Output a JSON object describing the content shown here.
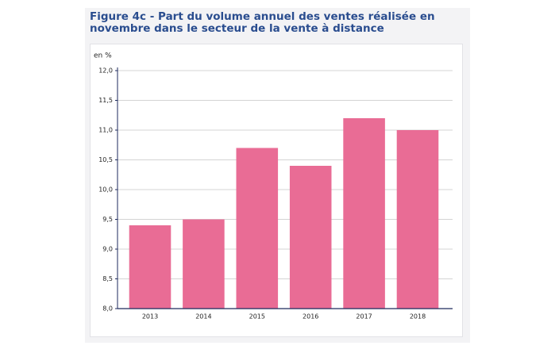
{
  "chart_data": {
    "type": "bar",
    "title": "Figure 4c - Part du volume annuel des ventes réalisée en novembre dans le secteur de la vente à distance",
    "y_label": "en %",
    "categories": [
      "2013",
      "2014",
      "2015",
      "2016",
      "2017",
      "2018"
    ],
    "values": [
      9.4,
      9.5,
      10.7,
      10.4,
      11.2,
      11.0
    ],
    "color": "#e96c95",
    "ylim": [
      8,
      12
    ],
    "yticks": [
      {
        "value": 8,
        "label": "8,0"
      },
      {
        "value": 8.5,
        "label": "8,5"
      },
      {
        "value": 9,
        "label": "9,0"
      },
      {
        "value": 9.5,
        "label": "9,5"
      },
      {
        "value": 10,
        "label": "10,0"
      },
      {
        "value": 10.5,
        "label": "10,5"
      },
      {
        "value": 11,
        "label": "11,0"
      },
      {
        "value": 11.5,
        "label": "11,5"
      },
      {
        "value": 12,
        "label": "12,0"
      }
    ],
    "grid": true
  }
}
